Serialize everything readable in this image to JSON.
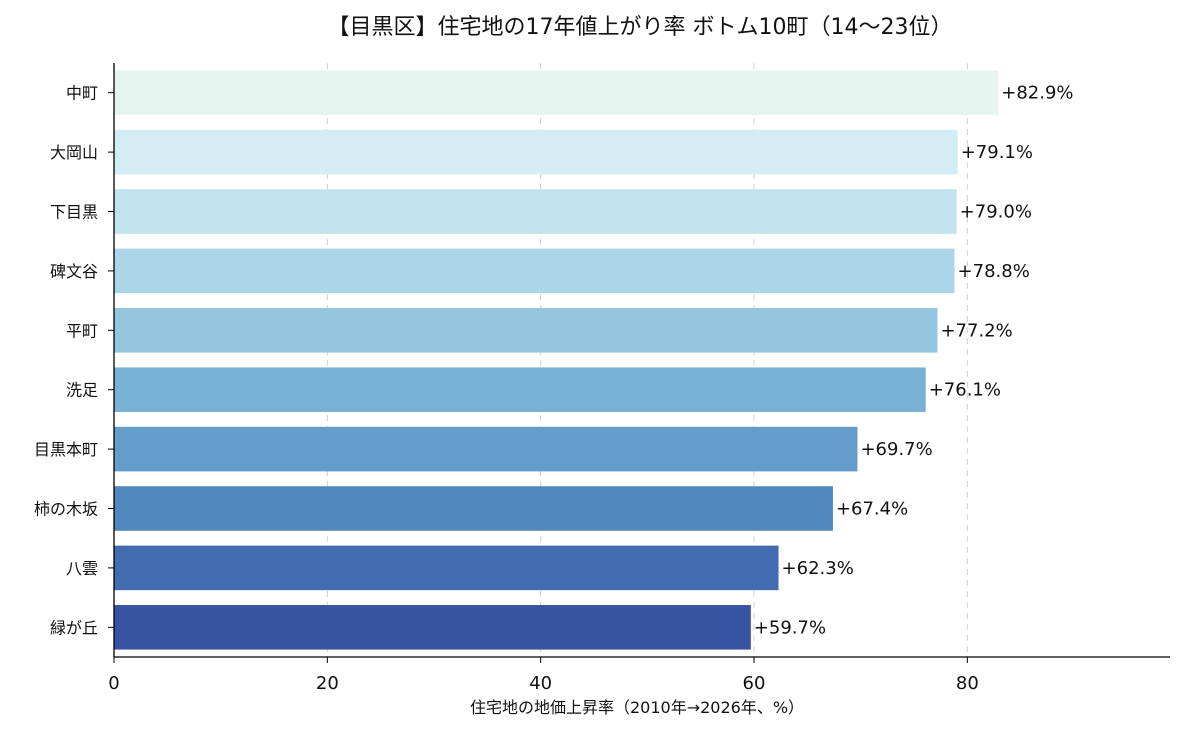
{
  "chart_data": {
    "type": "bar",
    "orientation": "horizontal",
    "title": "【目黒区】住宅地の17年値上がり率 ボトム10町（14〜23位）",
    "xlabel": "住宅地の地価上昇率（2010年→2026年、%）",
    "ylabel": "",
    "xlim": [
      0,
      99
    ],
    "xticks": [
      0,
      20,
      40,
      60,
      80
    ],
    "grid": "x-dashed",
    "categories": [
      "中町",
      "大岡山",
      "下目黒",
      "碑文谷",
      "平町",
      "洗足",
      "目黒本町",
      "柿の木坂",
      "八雲",
      "緑が丘"
    ],
    "values": [
      82.9,
      79.1,
      79.0,
      78.8,
      77.2,
      76.1,
      69.7,
      67.4,
      62.3,
      59.7
    ],
    "data_labels": [
      "+82.9%",
      "+79.1%",
      "+79.0%",
      "+78.8%",
      "+77.2%",
      "+76.1%",
      "+69.7%",
      "+67.4%",
      "+62.3%",
      "+59.7%"
    ],
    "colors": [
      "#e5f4ee",
      "#d4ecf3",
      "#c1e3ee",
      "#abd6e8",
      "#93c5de",
      "#79b1d4",
      "#649dc9",
      "#5087bd",
      "#416cb0",
      "#3953a3"
    ]
  }
}
